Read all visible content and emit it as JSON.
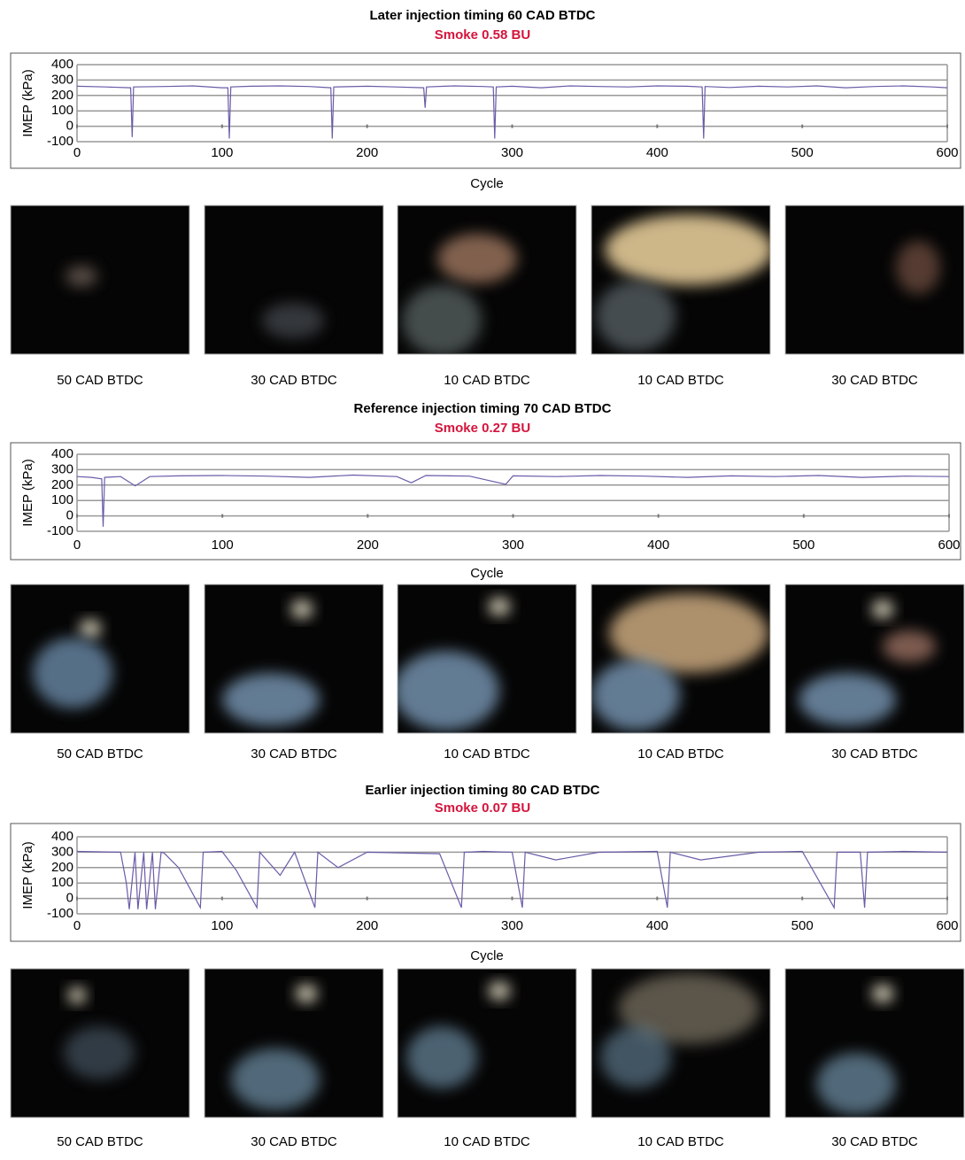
{
  "chart_data": [
    {
      "type": "line",
      "title": "Later injection timing 60 CAD BTDC",
      "subtitle": "Smoke 0.58 BU",
      "x_label": "Cycle",
      "y_label": "IMEP (kPa)",
      "color": "#6b5ba8",
      "grid": true,
      "xlim": [
        0,
        600
      ],
      "ylim": [
        -100,
        400
      ],
      "xticks": [
        0,
        100,
        200,
        300,
        400,
        500,
        600
      ],
      "yticks": [
        400,
        300,
        200,
        100,
        0,
        -100
      ],
      "x": [
        0,
        20,
        37,
        38,
        39,
        60,
        80,
        100,
        104,
        105,
        106,
        120,
        140,
        160,
        175,
        176,
        177,
        200,
        220,
        239,
        240,
        241,
        260,
        280,
        287,
        288,
        289,
        300,
        320,
        340,
        360,
        380,
        400,
        420,
        431,
        432,
        433,
        450,
        470,
        490,
        510,
        530,
        550,
        570,
        590,
        600
      ],
      "values": [
        260,
        255,
        250,
        -70,
        255,
        258,
        262,
        250,
        250,
        -80,
        255,
        260,
        262,
        258,
        250,
        -80,
        255,
        260,
        255,
        250,
        120,
        255,
        262,
        258,
        255,
        -80,
        255,
        260,
        250,
        262,
        258,
        255,
        262,
        260,
        255,
        -80,
        258,
        252,
        260,
        255,
        262,
        250,
        258,
        262,
        255,
        250
      ],
      "frame_labels": [
        "50 CAD BTDC",
        "30 CAD BTDC",
        "10 CAD BTDC",
        "10 CAD BTDC",
        "30 CAD BTDC"
      ]
    },
    {
      "type": "line",
      "title": "Reference injection timing 70 CAD BTDC",
      "subtitle": "Smoke 0.27 BU",
      "x_label": "Cycle",
      "y_label": "IMEP (kPa)",
      "color": "#6b5ba8",
      "grid": true,
      "xlim": [
        0,
        600
      ],
      "ylim": [
        -100,
        400
      ],
      "xticks": [
        0,
        100,
        200,
        300,
        400,
        500,
        600
      ],
      "yticks": [
        400,
        300,
        200,
        100,
        0,
        -100
      ],
      "x": [
        0,
        10,
        17,
        18,
        19,
        30,
        40,
        50,
        70,
        100,
        130,
        160,
        190,
        220,
        230,
        240,
        270,
        295,
        300,
        330,
        360,
        390,
        420,
        450,
        480,
        510,
        540,
        570,
        600
      ],
      "values": [
        255,
        250,
        240,
        -70,
        250,
        255,
        195,
        255,
        260,
        262,
        258,
        250,
        265,
        255,
        215,
        262,
        258,
        205,
        260,
        255,
        262,
        258,
        250,
        260,
        255,
        262,
        250,
        258,
        255
      ],
      "frame_labels": [
        "50 CAD BTDC",
        "30 CAD BTDC",
        "10 CAD BTDC",
        "10 CAD BTDC",
        "30 CAD BTDC"
      ]
    },
    {
      "type": "line",
      "title": "Earlier injection timing 80 CAD BTDC",
      "subtitle": "Smoke 0.07 BU",
      "x_label": "Cycle",
      "y_label": "IMEP (kPa)",
      "color": "#6b5ba8",
      "grid": true,
      "xlim": [
        0,
        600
      ],
      "ylim": [
        -100,
        400
      ],
      "xticks": [
        0,
        100,
        200,
        300,
        400,
        500,
        600
      ],
      "yticks": [
        400,
        300,
        200,
        100,
        0,
        -100
      ],
      "x": [
        0,
        30,
        34,
        36,
        40,
        42,
        46,
        48,
        52,
        54,
        58,
        60,
        70,
        85,
        87,
        100,
        110,
        124,
        126,
        140,
        150,
        164,
        166,
        180,
        200,
        250,
        265,
        267,
        280,
        300,
        307,
        309,
        330,
        360,
        400,
        407,
        409,
        430,
        470,
        500,
        522,
        524,
        540,
        543,
        545,
        570,
        600
      ],
      "values": [
        305,
        300,
        100,
        -70,
        300,
        -70,
        300,
        -70,
        300,
        -70,
        300,
        295,
        200,
        -60,
        300,
        305,
        180,
        -60,
        300,
        150,
        300,
        -60,
        300,
        200,
        300,
        290,
        -60,
        300,
        305,
        300,
        -60,
        300,
        250,
        300,
        305,
        -60,
        300,
        250,
        300,
        305,
        -60,
        300,
        300,
        -60,
        300,
        305,
        300
      ],
      "frame_labels": [
        "50 CAD BTDC",
        "30 CAD BTDC",
        "10 CAD BTDC",
        "10 CAD BTDC",
        "30 CAD BTDC"
      ]
    }
  ]
}
